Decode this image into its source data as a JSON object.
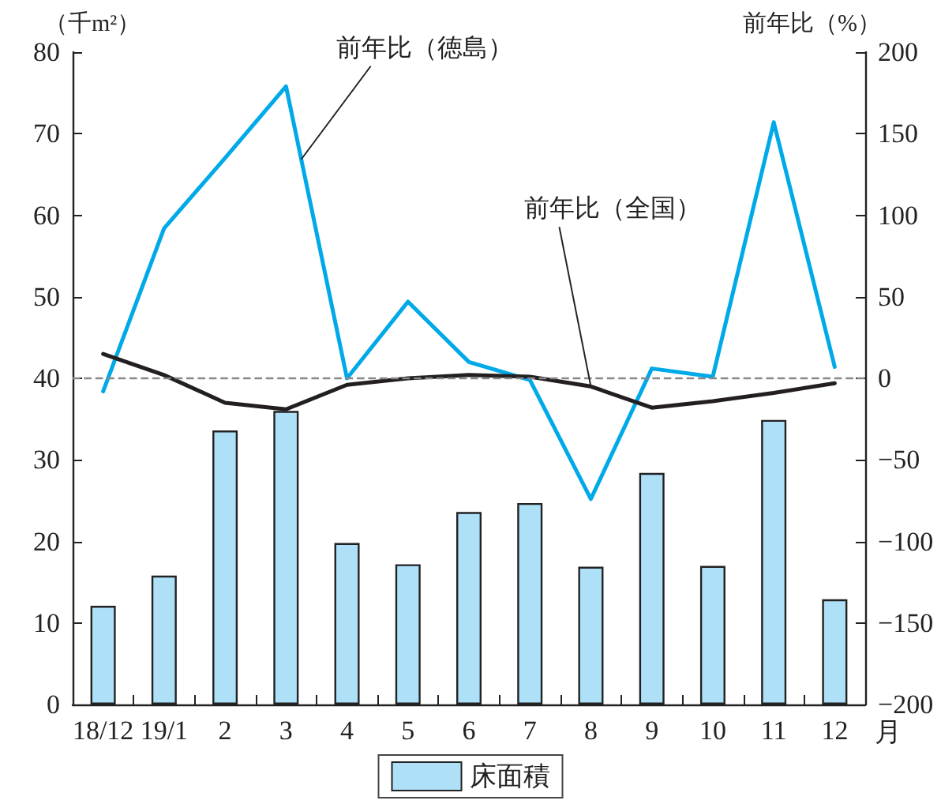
{
  "chart_data": {
    "type": "bar",
    "xlabel": "月",
    "ylabel": "（千m²）",
    "y2label": "前年比（%）",
    "categories": [
      "18/12",
      "19/1",
      "2",
      "3",
      "4",
      "5",
      "6",
      "7",
      "8",
      "9",
      "10",
      "11",
      "12"
    ],
    "series": [
      {
        "name": "床面積",
        "color": "#aee0f8",
        "values": [
          12.1,
          15.8,
          33.6,
          36,
          19.8,
          17.2,
          23.6,
          24.7,
          16.9,
          28.4,
          17,
          34.9,
          12.9
        ]
      },
      {
        "name": "前年比（徳島）",
        "type": "line",
        "axis": "y2",
        "color": "#00a9e8",
        "values": [
          -8,
          92,
          135,
          179,
          0,
          47,
          10,
          -1,
          -74,
          6,
          1,
          157,
          7
        ]
      },
      {
        "name": "前年比（全国）",
        "type": "line",
        "axis": "y2",
        "color": "#231f20",
        "values": [
          15,
          2,
          -15,
          -19,
          -4,
          0,
          2,
          1,
          -5,
          -18,
          -14,
          -9,
          -3
        ]
      }
    ],
    "ylim": [
      0,
      80
    ],
    "yticks": [
      0,
      10,
      20,
      30,
      40,
      50,
      60,
      70,
      80
    ],
    "y2lim": [
      -200,
      200
    ],
    "y2ticks": [
      -200,
      -150,
      -100,
      -50,
      0,
      50,
      100,
      150,
      200
    ],
    "ref_lines": [
      {
        "axis": "y2",
        "value": 0,
        "color": "#888888",
        "line_style": "dashed"
      }
    ],
    "grid": false,
    "legend": "bottom",
    "marker": "none",
    "line_style": "solid"
  }
}
